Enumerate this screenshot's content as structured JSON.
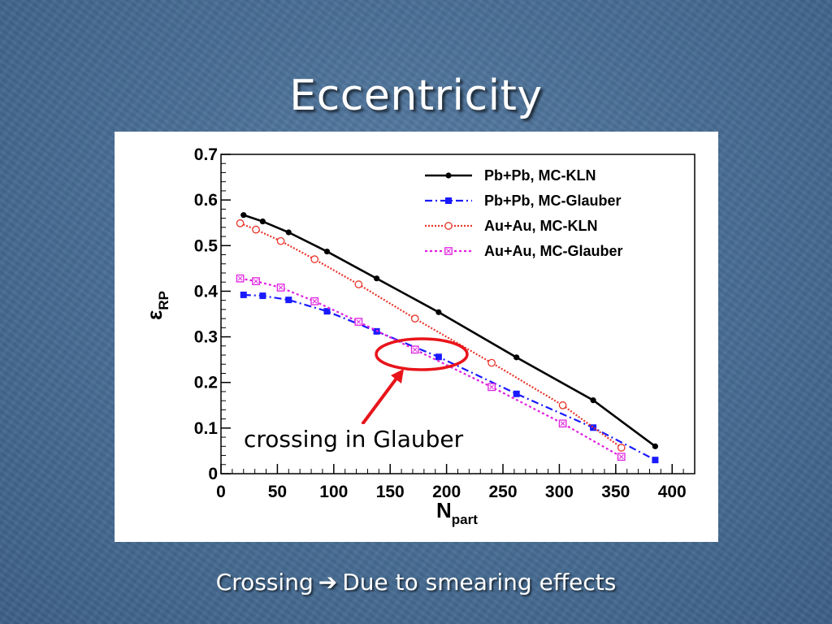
{
  "slide": {
    "title": "Eccentricity",
    "caption_before": "Crossing",
    "caption_arrow": "➔",
    "caption_after": "Due to smearing effects",
    "annotation": "crossing in Glauber"
  },
  "colors": {
    "annotation_red": "#e8141a",
    "pbpb_kln": "#000000",
    "pbpb_glauber": "#1a1aff",
    "auau_kln": "#e8342a",
    "auau_glauber": "#e020e0"
  },
  "chart_data": {
    "type": "line",
    "xlabel_main": "N",
    "xlabel_sub": "part",
    "ylabel_main": "ε",
    "ylabel_sub": "RP",
    "xlim": [
      0,
      420
    ],
    "ylim": [
      0,
      0.7
    ],
    "x_ticks": [
      "0",
      "50",
      "100",
      "150",
      "200",
      "250",
      "300",
      "350",
      "400"
    ],
    "y_ticks": [
      "0",
      "0.1",
      "0.2",
      "0.3",
      "0.4",
      "0.5",
      "0.6",
      "0.7"
    ],
    "legend_position": "top-right",
    "series": [
      {
        "name": "Pb+Pb, MC-KLN",
        "color_key": "pbpb_kln",
        "marker": "filled-circle",
        "dash": "",
        "x": [
          20,
          37,
          60,
          94,
          138,
          193,
          262,
          330,
          385
        ],
        "y": [
          0.567,
          0.553,
          0.529,
          0.487,
          0.428,
          0.354,
          0.255,
          0.161,
          0.06
        ]
      },
      {
        "name": "Pb+Pb, MC-Glauber",
        "color_key": "pbpb_glauber",
        "marker": "filled-square",
        "dash": "9 4 2 4",
        "x": [
          20,
          37,
          60,
          94,
          138,
          193,
          262,
          330,
          385
        ],
        "y": [
          0.392,
          0.39,
          0.381,
          0.356,
          0.312,
          0.256,
          0.175,
          0.101,
          0.03
        ]
      },
      {
        "name": "Au+Au, MC-KLN",
        "color_key": "auau_kln",
        "marker": "open-circle",
        "dash": "2 2",
        "x": [
          17,
          31,
          53,
          83,
          122,
          172,
          240,
          303,
          355
        ],
        "y": [
          0.549,
          0.535,
          0.51,
          0.47,
          0.415,
          0.34,
          0.243,
          0.15,
          0.057
        ]
      },
      {
        "name": "Au+Au, MC-Glauber",
        "color_key": "auau_glauber",
        "marker": "open-square-cross",
        "dash": "3 3",
        "x": [
          17,
          31,
          53,
          83,
          122,
          172,
          240,
          303,
          355
        ],
        "y": [
          0.428,
          0.422,
          0.408,
          0.378,
          0.333,
          0.272,
          0.19,
          0.11,
          0.037
        ]
      }
    ]
  }
}
